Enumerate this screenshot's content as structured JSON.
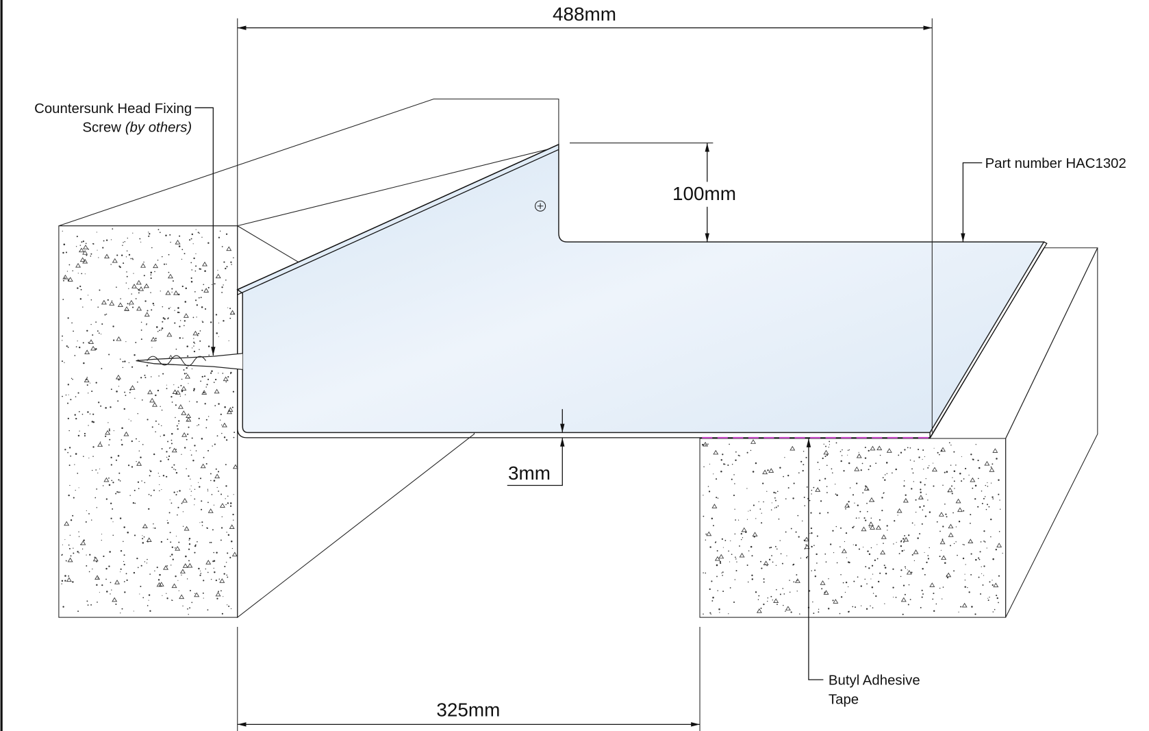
{
  "dimensions": {
    "width": "488mm",
    "height": "100mm",
    "thickness": "3mm",
    "span": "325mm"
  },
  "callouts": {
    "screw": {
      "line1": "Countersunk Head Fixing",
      "line2": "Screw",
      "note": "(by others)"
    },
    "part": "Part number HAC1302",
    "tape": {
      "line1": "Butyl Adhesive",
      "line2": "Tape"
    }
  }
}
